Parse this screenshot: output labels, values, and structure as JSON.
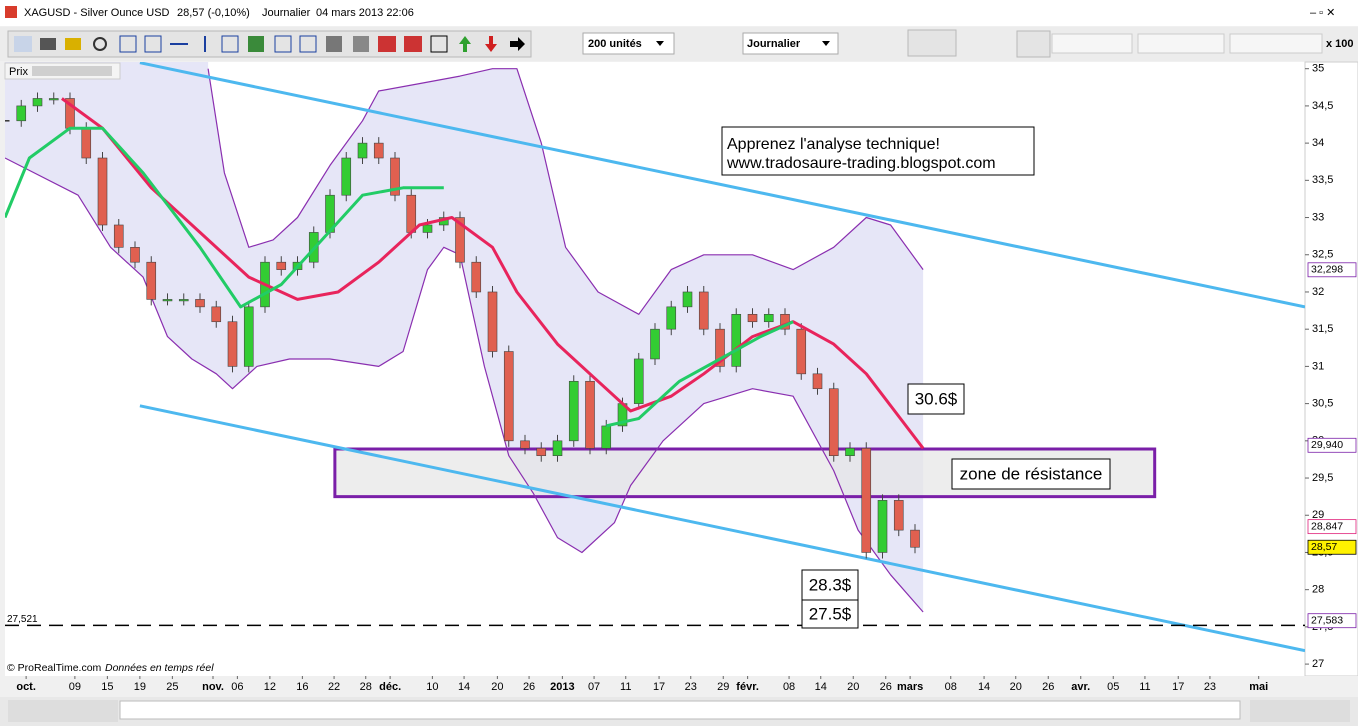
{
  "window": {
    "title": "XAGUSD - Silver Ounce USD",
    "quote": "28,57 (-0,10%)",
    "period": "Journalier",
    "datetime": "04 mars 2013 22:06"
  },
  "toolbar": {
    "units": "200 unités",
    "timeframe": "Journalier",
    "multiplier": "x 100"
  },
  "panel": {
    "label": "Prix"
  },
  "footer": {
    "copyright": "© ProRealTime.com",
    "feed": "Données en temps réel"
  },
  "chart_data": {
    "type": "candlestick",
    "xlim": [
      0,
      160
    ],
    "ylim": [
      26.84,
      35.09
    ],
    "yticks": [
      35,
      {
        "value": 34.5,
        "label": "34,5"
      },
      34,
      {
        "value": 33.5,
        "label": "33,5"
      },
      33,
      {
        "value": 32.5,
        "label": "32,5"
      },
      32,
      {
        "value": 31.5,
        "label": "31,5"
      },
      31,
      {
        "value": 30.5,
        "label": "30,5"
      },
      30,
      {
        "value": 29.5,
        "label": "29,5"
      },
      29,
      {
        "value": 28.5,
        "label": "28,5"
      },
      28,
      {
        "value": 27.5,
        "label": "27,5"
      },
      27
    ],
    "xticks": [
      {
        "value": 2.6,
        "label": "oct."
      },
      {
        "value": 8.6,
        "label": "09"
      },
      {
        "value": 12.6,
        "label": "15"
      },
      {
        "value": 16.6,
        "label": "19"
      },
      {
        "value": 20.6,
        "label": "25"
      },
      {
        "value": 25.6,
        "label": "nov."
      },
      {
        "value": 28.6,
        "label": "06"
      },
      {
        "value": 32.6,
        "label": "12"
      },
      {
        "value": 36.6,
        "label": "16"
      },
      {
        "value": 40.5,
        "label": "22"
      },
      {
        "value": 44.4,
        "label": "28"
      },
      {
        "value": 47.4,
        "label": "déc."
      },
      {
        "value": 52.6,
        "label": "10"
      },
      {
        "value": 56.5,
        "label": "14"
      },
      {
        "value": 60.6,
        "label": "20"
      },
      {
        "value": 64.5,
        "label": "26"
      },
      {
        "value": 68.6,
        "label": "2013"
      },
      {
        "value": 72.5,
        "label": "07"
      },
      {
        "value": 76.4,
        "label": "11"
      },
      {
        "value": 80.5,
        "label": "17"
      },
      {
        "value": 84.4,
        "label": "23"
      },
      {
        "value": 88.4,
        "label": "29"
      },
      {
        "value": 91.4,
        "label": "févr."
      },
      {
        "value": 96.5,
        "label": "08"
      },
      {
        "value": 100.4,
        "label": "14"
      },
      {
        "value": 104.4,
        "label": "20"
      },
      {
        "value": 108.4,
        "label": "26"
      },
      {
        "value": 111.4,
        "label": "mars"
      },
      {
        "value": 116.4,
        "label": "08"
      },
      {
        "value": 120.5,
        "label": "14"
      },
      {
        "value": 124.4,
        "label": "20"
      },
      {
        "value": 128.4,
        "label": "26"
      },
      {
        "value": 132.4,
        "label": "avr."
      },
      {
        "value": 136.4,
        "label": "05"
      },
      {
        "value": 140.3,
        "label": "11"
      },
      {
        "value": 144.4,
        "label": "17"
      },
      {
        "value": 148.3,
        "label": "23"
      },
      {
        "value": 154.3,
        "label": "mai"
      }
    ],
    "candles": {
      "up_color": "#33cc33",
      "down_color": "#e06050",
      "x": [
        0,
        2,
        4,
        6,
        8,
        10,
        12,
        14,
        16,
        18,
        20,
        22,
        24,
        26,
        28,
        30,
        32,
        34,
        36,
        38,
        40,
        42,
        44,
        46,
        48,
        50,
        52,
        54,
        56,
        58,
        60,
        62,
        64,
        66,
        68,
        70,
        72,
        74,
        76,
        78,
        80,
        82,
        84,
        86,
        88,
        90,
        92,
        94,
        96,
        98,
        100,
        102,
        104,
        106,
        108,
        110,
        112
      ],
      "values": [
        34.3,
        34.5,
        34.6,
        34.6,
        34.2,
        33.8,
        32.9,
        32.6,
        32.4,
        31.9,
        31.9,
        31.9,
        31.8,
        31.6,
        31.0,
        31.8,
        32.4,
        32.3,
        32.4,
        32.8,
        33.3,
        33.8,
        34.0,
        33.8,
        33.3,
        32.8,
        32.9,
        33.0,
        32.4,
        32.0,
        31.2,
        30.0,
        29.9,
        29.8,
        30.0,
        30.8,
        29.9,
        30.2,
        30.5,
        31.1,
        31.5,
        31.8,
        32.0,
        31.5,
        31.0,
        31.7,
        31.6,
        31.7,
        31.5,
        30.9,
        30.7,
        29.8,
        29.9,
        28.5,
        29.2,
        28.8,
        28.57
      ]
    },
    "upper_band": {
      "color": "#8a2fb0",
      "fill": "#e6e6f7",
      "x": [
        25,
        27,
        30,
        33,
        36,
        40,
        44,
        46,
        51,
        56,
        60,
        63,
        66,
        69,
        73,
        78,
        82,
        86,
        92,
        97,
        102,
        106,
        109,
        113
      ],
      "values": [
        35.0,
        33.6,
        32.6,
        32.7,
        33.0,
        33.7,
        34.3,
        34.7,
        34.8,
        34.9,
        35.0,
        35.0,
        34.0,
        32.6,
        32.0,
        31.7,
        32.3,
        32.5,
        32.5,
        32.3,
        32.6,
        33.0,
        32.9,
        32.3
      ]
    },
    "lower_band": {
      "color": "#8a2fb0",
      "x": [
        0,
        9,
        13,
        17,
        20,
        23,
        26,
        28,
        31,
        35,
        40,
        46,
        49,
        52,
        54,
        56,
        59,
        62,
        65,
        68,
        71,
        75,
        77,
        81,
        86,
        92,
        97,
        102,
        105,
        109,
        113
      ],
      "values": [
        33.8,
        33.3,
        32.6,
        32.2,
        31.4,
        31.1,
        30.9,
        30.7,
        31.0,
        31.1,
        31.1,
        31.0,
        31.2,
        32.3,
        32.6,
        32.5,
        31.0,
        29.8,
        29.3,
        28.7,
        28.5,
        28.9,
        29.4,
        30.0,
        30.5,
        30.7,
        30.6,
        29.6,
        28.8,
        28.2,
        27.7
      ]
    },
    "slow_average": {
      "color": "#e8245c",
      "x": [
        7,
        12,
        18,
        24,
        30,
        36,
        41,
        46,
        51,
        55,
        60,
        63,
        68,
        73,
        77,
        82,
        86,
        92,
        97,
        102,
        106,
        113
      ],
      "values": [
        34.6,
        34.2,
        33.4,
        32.8,
        32.2,
        31.9,
        32.0,
        32.4,
        32.9,
        33.0,
        32.6,
        32.0,
        31.3,
        30.8,
        30.4,
        30.6,
        30.9,
        31.4,
        31.6,
        31.3,
        30.9,
        29.9
      ]
    },
    "fast_average": {
      "color": "#22cc66",
      "x": [
        0,
        3,
        8,
        12,
        17,
        24,
        29,
        34,
        39,
        44,
        49,
        54,
        64,
        74,
        78,
        83,
        88,
        93,
        97
      ],
      "values": [
        33.0,
        33.8,
        34.2,
        34.2,
        33.6,
        32.6,
        31.8,
        32.1,
        32.7,
        33.3,
        33.4,
        33.4,
        null,
        30.2,
        30.3,
        30.8,
        31.1,
        31.4,
        31.6
      ]
    },
    "channel_upper": {
      "color": "#4db8ef",
      "x": [
        16.6,
        160
      ],
      "values": [
        35.08,
        31.8
      ]
    },
    "channel_lower": {
      "color": "#4db8ef",
      "x": [
        16.6,
        160
      ],
      "values": [
        30.47,
        27.18
      ]
    },
    "resistance_zone": {
      "color": "#7a1fa8",
      "fill": "#e6e6e6",
      "x": [
        40.6,
        141.5
      ],
      "y": [
        29.25,
        29.89
      ]
    },
    "support": {
      "value": 27.521,
      "label": "27,521"
    },
    "price_tags": [
      {
        "value": 32.298,
        "label": "32,298",
        "color": "#7a1fa8"
      },
      {
        "value": 29.94,
        "label": "29,940",
        "color": "#7a1fa8"
      },
      {
        "value": 28.847,
        "label": "28,847",
        "color": "#e0207a"
      },
      {
        "value": 28.57,
        "label": "28,57",
        "color": "#000000",
        "background": "#fff200"
      },
      {
        "value": 27.583,
        "label": "27,583",
        "color": "#7a1fa8"
      }
    ],
    "notes": [
      "Apprenez l'analyse technique!",
      "www.tradosaure-trading.blogspot.com",
      "30.6$",
      "zone de résistance",
      "28.3$",
      "27.5$"
    ]
  }
}
